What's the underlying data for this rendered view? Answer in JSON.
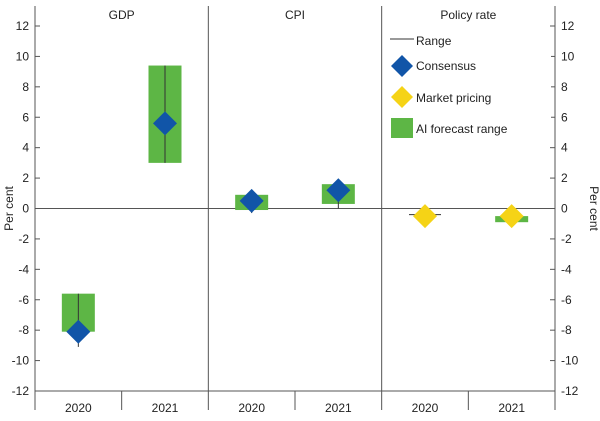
{
  "chart_data": {
    "type": "range-forecast",
    "panels": [
      "GDP",
      "CPI",
      "Policy rate"
    ],
    "categories": [
      "2020",
      "2021"
    ],
    "ylabel_left": "Per cent",
    "ylabel_right": "Per cent",
    "ylim": [
      -12,
      12
    ],
    "yticks": [
      -12,
      -10,
      -8,
      -6,
      -4,
      -2,
      0,
      2,
      4,
      6,
      8,
      10,
      12
    ],
    "legend": {
      "position": "top-right",
      "range": "Range",
      "consensus": "Consensus",
      "market": "Market pricing",
      "ai_range": "AI forecast range"
    },
    "colors": {
      "consensus": "#1155a8",
      "market": "#f5d316",
      "ai_range": "#5db645",
      "range_line": "#333333",
      "axis": "#555555"
    },
    "points": [
      {
        "panel": 0,
        "category": 0,
        "ai_low": -8.1,
        "ai_high": -5.6,
        "range_low": -9.1,
        "range_high": -5.6,
        "consensus": -8.1
      },
      {
        "panel": 0,
        "category": 1,
        "ai_low": 3.0,
        "ai_high": 9.4,
        "range_low": 3.0,
        "range_high": 9.4,
        "consensus": 5.6
      },
      {
        "panel": 1,
        "category": 0,
        "ai_low": -0.1,
        "ai_high": 0.9,
        "range_low": -0.3,
        "range_high": 1.0,
        "consensus": 0.5
      },
      {
        "panel": 1,
        "category": 1,
        "ai_low": 0.3,
        "ai_high": 1.6,
        "range_low": 0.0,
        "range_high": 1.8,
        "consensus": 1.2
      },
      {
        "panel": 2,
        "category": 0,
        "range_low": -0.4,
        "range_high": -0.4,
        "market": -0.5
      },
      {
        "panel": 2,
        "category": 1,
        "ai_low": -0.9,
        "ai_high": -0.5,
        "range_low": -0.8,
        "range_high": -0.5,
        "market": -0.5
      }
    ]
  }
}
